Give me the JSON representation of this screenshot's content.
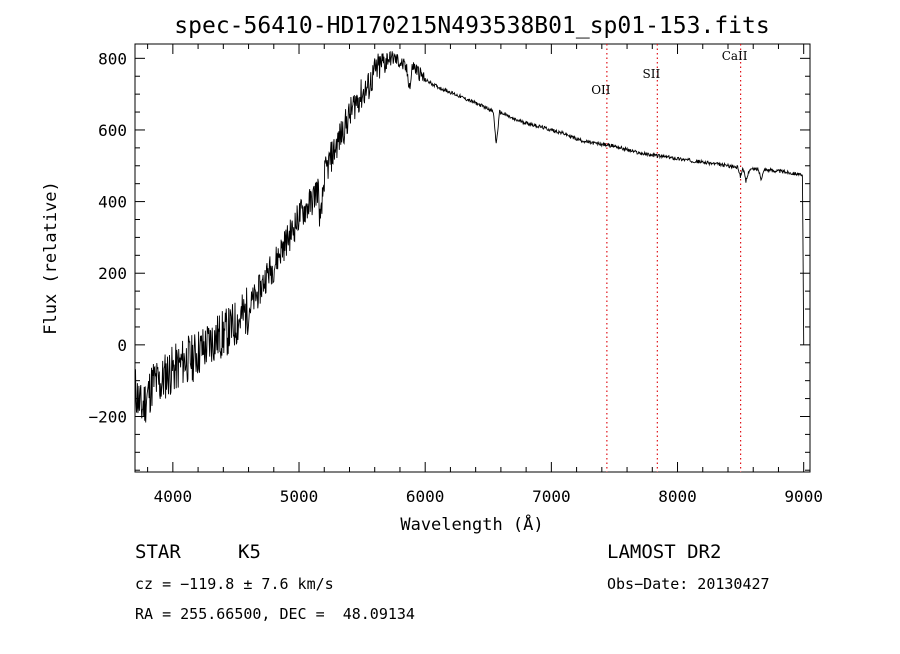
{
  "chart_data": {
    "type": "line",
    "title": "spec-56410-HD170215N493538B01_sp01-153.fits",
    "xlabel": "Wavelength (Å)",
    "ylabel": "Flux (relative)",
    "xlim": [
      3700,
      9050
    ],
    "ylim": [
      -355,
      840
    ],
    "xticks": [
      4000,
      5000,
      6000,
      7000,
      8000,
      9000
    ],
    "yticks": [
      -200,
      0,
      200,
      400,
      600,
      800
    ],
    "grid": false,
    "series": [
      {
        "color": "#000000",
        "x": [
          3700,
          3750,
          3800,
          3850,
          3900,
          3950,
          4000,
          4050,
          4100,
          4150,
          4200,
          4250,
          4300,
          4350,
          4400,
          4450,
          4500,
          4550,
          4600,
          4650,
          4700,
          4750,
          4800,
          4850,
          4900,
          4950,
          5000,
          5050,
          5100,
          5150,
          5170,
          5200,
          5250,
          5300,
          5350,
          5400,
          5450,
          5500,
          5550,
          5600,
          5650,
          5700,
          5750,
          5800,
          5850,
          5880,
          5900,
          5950,
          6000,
          6100,
          6200,
          6300,
          6400,
          6500,
          6540,
          6563,
          6590,
          6650,
          6700,
          6800,
          6900,
          7000,
          7100,
          7200,
          7300,
          7400,
          7500,
          7600,
          7700,
          7800,
          7900,
          8000,
          8100,
          8200,
          8300,
          8400,
          8480,
          8498,
          8520,
          8542,
          8570,
          8640,
          8662,
          8690,
          8750,
          8800,
          8850,
          8900,
          8950,
          8990,
          9000
        ],
        "y": [
          -120,
          -180,
          -140,
          -100,
          -110,
          -80,
          -70,
          -60,
          -40,
          -40,
          -20,
          -10,
          10,
          20,
          30,
          40,
          60,
          80,
          100,
          130,
          160,
          200,
          220,
          260,
          290,
          320,
          360,
          380,
          400,
          440,
          330,
          470,
          520,
          560,
          600,
          640,
          680,
          700,
          720,
          760,
          780,
          800,
          800,
          790,
          770,
          720,
          780,
          760,
          740,
          720,
          705,
          690,
          675,
          660,
          650,
          560,
          650,
          640,
          630,
          620,
          610,
          600,
          590,
          575,
          565,
          560,
          555,
          545,
          535,
          530,
          525,
          520,
          515,
          510,
          505,
          500,
          495,
          470,
          495,
          455,
          490,
          490,
          465,
          490,
          487,
          485,
          483,
          480,
          478,
          470,
          0
        ]
      }
    ],
    "annotations": [
      {
        "label": "OII",
        "x": 7440,
        "y": 700
      },
      {
        "label": "SII",
        "x": 7840,
        "y": 745
      },
      {
        "label": "CaII",
        "x": 8500,
        "y": 795
      }
    ]
  },
  "info": {
    "type_label": "STAR",
    "subclass": "K5",
    "survey": "LAMOST DR2",
    "cz": "cz = −119.8 ± 7.6 km/s",
    "obs_date": "Obs−Date: 20130427",
    "coords": "RA = 255.66500, DEC =  48.09134"
  }
}
